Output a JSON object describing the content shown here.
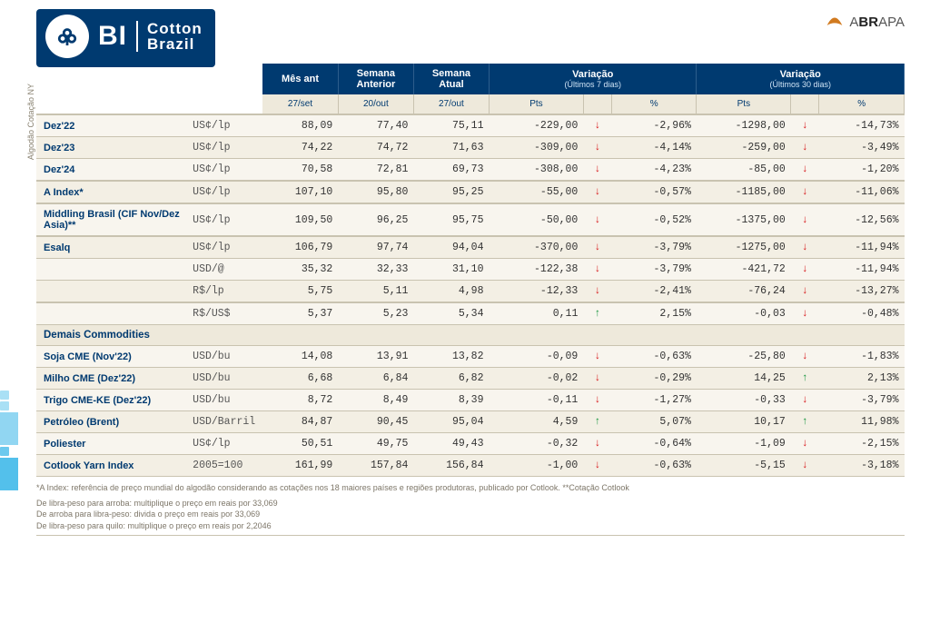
{
  "branding": {
    "bi": "BI",
    "product_line1": "Cotton",
    "product_line2": "Brazil",
    "org": "ABRAPA"
  },
  "side_label": "Algodão\nCotação NY",
  "headers": {
    "mes_ant": "Mês ant",
    "sem_ant": "Semana\nAnterior",
    "sem_atual": "Semana\nAtual",
    "var7_title": "Variação",
    "var7_sub": "(Últimos 7 dias)",
    "var30_title": "Variação",
    "var30_sub": "(Últimos 30 dias)",
    "dates": {
      "mes_ant": "27/set",
      "sem_ant": "20/out",
      "sem_atual": "27/out"
    },
    "pts": "Pts",
    "pct": "%"
  },
  "rows": [
    {
      "name": "Dez'22",
      "unit": "US¢/lp",
      "m1": "88,09",
      "m2": "77,40",
      "m3": "75,11",
      "p7": "-229,00",
      "d7": "down",
      "pc7": "-2,96%",
      "p30": "-1298,00",
      "d30": "down",
      "pc30": "-14,73%"
    },
    {
      "name": "Dez'23",
      "unit": "US¢/lp",
      "m1": "74,22",
      "m2": "74,72",
      "m3": "71,63",
      "p7": "-309,00",
      "d7": "down",
      "pc7": "-4,14%",
      "p30": "-259,00",
      "d30": "down",
      "pc30": "-3,49%"
    },
    {
      "name": "Dez'24",
      "unit": "US¢/lp",
      "m1": "70,58",
      "m2": "72,81",
      "m3": "69,73",
      "p7": "-308,00",
      "d7": "down",
      "pc7": "-4,23%",
      "p30": "-85,00",
      "d30": "down",
      "pc30": "-1,20%"
    },
    {
      "group": true,
      "name": "A Index*",
      "unit": "US¢/lp",
      "m1": "107,10",
      "m2": "95,80",
      "m3": "95,25",
      "p7": "-55,00",
      "d7": "down",
      "pc7": "-0,57%",
      "p30": "-1185,00",
      "d30": "down",
      "pc30": "-11,06%"
    },
    {
      "group": true,
      "name": "Middling Brasil (CIF Nov/Dez Asia)**",
      "unit": "US¢/lp",
      "m1": "109,50",
      "m2": "96,25",
      "m3": "95,75",
      "p7": "-50,00",
      "d7": "down",
      "pc7": "-0,52%",
      "p30": "-1375,00",
      "d30": "down",
      "pc30": "-12,56%"
    },
    {
      "group": true,
      "name": "Esalq",
      "unit": "US¢/lp",
      "m1": "106,79",
      "m2": "97,74",
      "m3": "94,04",
      "p7": "-370,00",
      "d7": "down",
      "pc7": "-3,79%",
      "p30": "-1275,00",
      "d30": "down",
      "pc30": "-11,94%"
    },
    {
      "name": "",
      "unit": "USD/@",
      "m1": "35,32",
      "m2": "32,33",
      "m3": "31,10",
      "p7": "-122,38",
      "d7": "down",
      "pc7": "-3,79%",
      "p30": "-421,72",
      "d30": "down",
      "pc30": "-11,94%"
    },
    {
      "name": "",
      "unit": "R$/lp",
      "m1": "5,75",
      "m2": "5,11",
      "m3": "4,98",
      "p7": "-12,33",
      "d7": "down",
      "pc7": "-2,41%",
      "p30": "-76,24",
      "d30": "down",
      "pc30": "-13,27%"
    },
    {
      "group": true,
      "name": "",
      "unit": "R$/US$",
      "m1": "5,37",
      "m2": "5,23",
      "m3": "5,34",
      "p7": "0,11",
      "d7": "up",
      "pc7": "2,15%",
      "p30": "-0,03",
      "d30": "down",
      "pc30": "-0,48%"
    },
    {
      "section": "Demais Commodities"
    },
    {
      "name": "Soja CME (Nov'22)",
      "unit": "USD/bu",
      "m1": "14,08",
      "m2": "13,91",
      "m3": "13,82",
      "p7": "-0,09",
      "d7": "down",
      "pc7": "-0,63%",
      "p30": "-25,80",
      "d30": "down",
      "pc30": "-1,83%"
    },
    {
      "name": "Milho CME (Dez'22)",
      "unit": "USD/bu",
      "m1": "6,68",
      "m2": "6,84",
      "m3": "6,82",
      "p7": "-0,02",
      "d7": "down",
      "pc7": "-0,29%",
      "p30": "14,25",
      "d30": "up",
      "pc30": "2,13%"
    },
    {
      "name": "Trigo CME-KE (Dez'22)",
      "unit": "USD/bu",
      "m1": "8,72",
      "m2": "8,49",
      "m3": "8,39",
      "p7": "-0,11",
      "d7": "down",
      "pc7": "-1,27%",
      "p30": "-0,33",
      "d30": "down",
      "pc30": "-3,79%"
    },
    {
      "name": "Petróleo (Brent)",
      "unit": "USD/Barril",
      "m1": "84,87",
      "m2": "90,45",
      "m3": "95,04",
      "p7": "4,59",
      "d7": "up",
      "pc7": "5,07%",
      "p30": "10,17",
      "d30": "up",
      "pc30": "11,98%"
    },
    {
      "name": "Poliester",
      "unit": "US¢/lp",
      "m1": "50,51",
      "m2": "49,75",
      "m3": "49,43",
      "p7": "-0,32",
      "d7": "down",
      "pc7": "-0,64%",
      "p30": "-1,09",
      "d30": "down",
      "pc30": "-2,15%"
    },
    {
      "name": "Cotlook Yarn Index",
      "unit": "2005=100",
      "m1": "161,99",
      "m2": "157,84",
      "m3": "156,84",
      "p7": "-1,00",
      "d7": "down",
      "pc7": "-0,63%",
      "p30": "-5,15",
      "d30": "down",
      "pc30": "-3,18%"
    }
  ],
  "footnotes": {
    "line1": "*A Index: referência de preço mundial do algodão considerando as cotações nos 18 maiores países e regiões produtoras, publicado por Cotlook. **Cotação Cotlook",
    "line2": "De libra-peso para arroba: multiplique o preço em reais por 33,069",
    "line3": "De arroba para libra-peso: divida o preço em reais por 33,069",
    "line4": "De libra-peso para quilo: multiplique o preço em reais por 2,2046"
  },
  "glyphs": {
    "up": "↑",
    "down": "↓"
  },
  "colors": {
    "navy": "#003a70",
    "up": "#1a9641",
    "down": "#d7191c",
    "row_light": "#f8f5ee",
    "row_alt": "#f3efe4",
    "row_section": "#eee9db",
    "border": "#c9c3b0",
    "footnote": "#7d7668"
  }
}
